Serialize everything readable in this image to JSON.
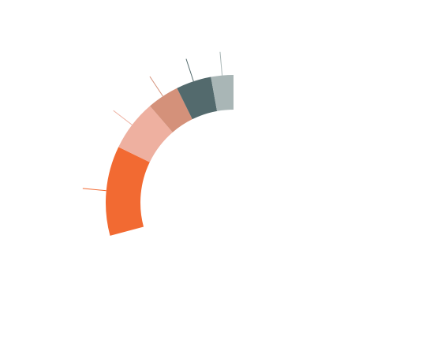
{
  "chart_data": {
    "type": "pie",
    "variant": "partial-donut",
    "title": "",
    "legend": "none",
    "data_labels": "none",
    "slices": [
      {
        "value": 28,
        "color": "#F26A32"
      },
      {
        "value": 16,
        "color": "#EEB0A0"
      },
      {
        "value": 10,
        "color": "#D4917A"
      },
      {
        "value": 11,
        "color": "#536A6D"
      },
      {
        "value": 7,
        "color": "#A9B6B6"
      }
    ]
  }
}
